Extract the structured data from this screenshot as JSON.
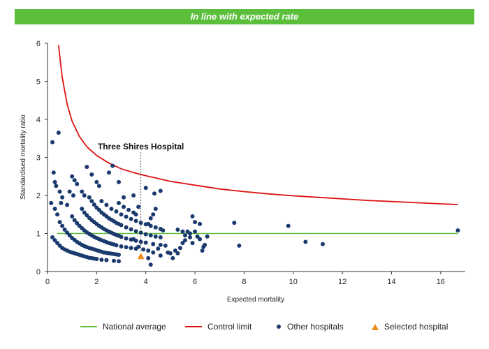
{
  "banner": {
    "text": "In line with expected rate"
  },
  "legend": {
    "national_average": "National average",
    "control_limit": "Control limit",
    "other_hospitals": "Other hospitals",
    "selected_hospital": "Selected hospital"
  },
  "colors": {
    "banner": "#5cbf3c",
    "national_average": "#5cbf3c",
    "control_limit": "#dd1111",
    "other_hospitals": "#1a3a6e",
    "selected_hospital": "#f08a1c"
  },
  "chart_data": {
    "type": "scatter",
    "xlabel": "Expected mortality",
    "ylabel": "Standardised mortality ratio",
    "xlim": [
      0,
      17
    ],
    "ylim": [
      0,
      6
    ],
    "xticks": [
      0,
      2,
      4,
      6,
      8,
      10,
      12,
      14,
      16
    ],
    "yticks": [
      0,
      1,
      2,
      3,
      4,
      5,
      6
    ],
    "grid": false,
    "legend_position": "bottom",
    "annotation": {
      "text": "Three Shires Hospital",
      "x": 3.8,
      "y": 0.4
    },
    "national_average": {
      "y": 1,
      "x_range": [
        0.4,
        16.7
      ]
    },
    "control_limit": {
      "x": [
        0.45,
        0.6,
        0.8,
        1.0,
        1.3,
        1.6,
        2.0,
        2.5,
        3.0,
        3.5,
        4.0,
        5.0,
        6.0,
        7.0,
        8.0,
        9.0,
        10.0,
        11.0,
        12.0,
        13.0,
        14.0,
        15.0,
        16.0,
        16.7
      ],
      "y": [
        5.95,
        5.1,
        4.4,
        3.95,
        3.55,
        3.28,
        3.05,
        2.85,
        2.7,
        2.6,
        2.52,
        2.37,
        2.27,
        2.17,
        2.1,
        2.04,
        1.99,
        1.95,
        1.91,
        1.87,
        1.84,
        1.81,
        1.78,
        1.76
      ]
    },
    "series": [
      {
        "name": "Other hospitals",
        "points": [
          [
            0.2,
            3.4
          ],
          [
            0.45,
            3.65
          ],
          [
            0.25,
            2.6
          ],
          [
            0.3,
            2.35
          ],
          [
            0.35,
            2.25
          ],
          [
            0.5,
            2.1
          ],
          [
            0.6,
            1.95
          ],
          [
            0.9,
            2.1
          ],
          [
            1.0,
            2.5
          ],
          [
            1.1,
            2.4
          ],
          [
            1.2,
            2.3
          ],
          [
            0.3,
            1.65
          ],
          [
            0.4,
            1.5
          ],
          [
            0.55,
            1.8
          ],
          [
            0.8,
            1.75
          ],
          [
            1.05,
            2.0
          ],
          [
            1.4,
            2.1
          ],
          [
            1.5,
            2.0
          ],
          [
            1.6,
            2.75
          ],
          [
            1.8,
            2.55
          ],
          [
            2.0,
            2.35
          ],
          [
            2.1,
            2.25
          ],
          [
            2.5,
            2.6
          ],
          [
            2.65,
            2.78
          ],
          [
            2.9,
            2.35
          ],
          [
            3.1,
            1.95
          ],
          [
            3.5,
            2.0
          ],
          [
            4.0,
            2.2
          ],
          [
            4.35,
            2.05
          ],
          [
            4.6,
            2.12
          ],
          [
            0.15,
            1.8
          ],
          [
            0.2,
            0.9
          ],
          [
            0.3,
            0.82
          ],
          [
            0.4,
            0.75
          ],
          [
            0.5,
            0.68
          ],
          [
            0.6,
            0.62
          ],
          [
            0.7,
            0.58
          ],
          [
            0.8,
            0.55
          ],
          [
            0.9,
            0.52
          ],
          [
            1.0,
            0.5
          ],
          [
            1.1,
            0.48
          ],
          [
            1.2,
            0.46
          ],
          [
            1.3,
            0.44
          ],
          [
            1.4,
            0.42
          ],
          [
            1.5,
            0.4
          ],
          [
            1.6,
            0.38
          ],
          [
            1.7,
            0.36
          ],
          [
            1.8,
            0.35
          ],
          [
            1.9,
            0.34
          ],
          [
            2.0,
            0.33
          ],
          [
            2.2,
            0.31
          ],
          [
            2.4,
            0.3
          ],
          [
            2.7,
            0.28
          ],
          [
            2.9,
            0.27
          ],
          [
            0.5,
            1.3
          ],
          [
            0.6,
            1.2
          ],
          [
            0.7,
            1.1
          ],
          [
            0.8,
            1.02
          ],
          [
            0.9,
            0.95
          ],
          [
            1.0,
            0.88
          ],
          [
            1.1,
            0.83
          ],
          [
            1.2,
            0.78
          ],
          [
            1.3,
            0.74
          ],
          [
            1.4,
            0.7
          ],
          [
            1.5,
            0.67
          ],
          [
            1.6,
            0.64
          ],
          [
            1.7,
            0.62
          ],
          [
            1.8,
            0.6
          ],
          [
            1.9,
            0.58
          ],
          [
            2.0,
            0.56
          ],
          [
            2.1,
            0.54
          ],
          [
            2.2,
            0.52
          ],
          [
            2.3,
            0.5
          ],
          [
            2.4,
            0.49
          ],
          [
            2.5,
            0.48
          ],
          [
            2.6,
            0.47
          ],
          [
            2.7,
            0.46
          ],
          [
            2.8,
            0.45
          ],
          [
            2.9,
            0.44
          ],
          [
            1.0,
            1.45
          ],
          [
            1.1,
            1.35
          ],
          [
            1.2,
            1.27
          ],
          [
            1.3,
            1.2
          ],
          [
            1.4,
            1.14
          ],
          [
            1.5,
            1.08
          ],
          [
            1.6,
            1.03
          ],
          [
            1.7,
            0.99
          ],
          [
            1.8,
            0.95
          ],
          [
            1.9,
            0.91
          ],
          [
            2.0,
            0.88
          ],
          [
            2.1,
            0.85
          ],
          [
            2.2,
            0.82
          ],
          [
            2.3,
            0.8
          ],
          [
            2.4,
            0.77
          ],
          [
            2.5,
            0.75
          ],
          [
            2.6,
            0.73
          ],
          [
            2.7,
            0.71
          ],
          [
            2.8,
            0.69
          ],
          [
            3.0,
            0.66
          ],
          [
            3.2,
            0.64
          ],
          [
            3.4,
            0.62
          ],
          [
            3.6,
            0.6
          ],
          [
            1.4,
            1.65
          ],
          [
            1.5,
            1.55
          ],
          [
            1.6,
            1.48
          ],
          [
            1.7,
            1.41
          ],
          [
            1.8,
            1.35
          ],
          [
            1.9,
            1.3
          ],
          [
            2.0,
            1.25
          ],
          [
            2.1,
            1.2
          ],
          [
            2.2,
            1.16
          ],
          [
            2.3,
            1.12
          ],
          [
            2.4,
            1.08
          ],
          [
            2.5,
            1.05
          ],
          [
            2.6,
            1.02
          ],
          [
            2.7,
            0.99
          ],
          [
            2.8,
            0.96
          ],
          [
            2.9,
            0.94
          ],
          [
            3.0,
            0.91
          ],
          [
            3.2,
            0.87
          ],
          [
            3.4,
            0.84
          ],
          [
            3.6,
            0.81
          ],
          [
            3.8,
            0.78
          ],
          [
            4.0,
            0.76
          ],
          [
            4.3,
            0.72
          ],
          [
            4.6,
            0.7
          ],
          [
            1.7,
            1.95
          ],
          [
            1.8,
            1.85
          ],
          [
            1.9,
            1.76
          ],
          [
            2.0,
            1.68
          ],
          [
            2.1,
            1.62
          ],
          [
            2.2,
            1.55
          ],
          [
            2.3,
            1.5
          ],
          [
            2.4,
            1.45
          ],
          [
            2.5,
            1.4
          ],
          [
            2.6,
            1.36
          ],
          [
            2.7,
            1.32
          ],
          [
            2.8,
            1.28
          ],
          [
            2.9,
            1.25
          ],
          [
            3.0,
            1.22
          ],
          [
            3.2,
            1.16
          ],
          [
            3.4,
            1.11
          ],
          [
            3.6,
            1.06
          ],
          [
            3.8,
            1.02
          ],
          [
            4.0,
            0.98
          ],
          [
            4.2,
            0.95
          ],
          [
            4.4,
            0.92
          ],
          [
            4.6,
            0.9
          ],
          [
            2.2,
            1.85
          ],
          [
            2.4,
            1.75
          ],
          [
            2.6,
            1.65
          ],
          [
            2.8,
            1.58
          ],
          [
            3.0,
            1.5
          ],
          [
            3.2,
            1.44
          ],
          [
            3.4,
            1.38
          ],
          [
            3.6,
            1.33
          ],
          [
            3.8,
            1.28
          ],
          [
            4.0,
            1.24
          ],
          [
            4.2,
            1.2
          ],
          [
            4.4,
            1.16
          ],
          [
            4.6,
            1.12
          ],
          [
            2.9,
            1.8
          ],
          [
            3.1,
            1.7
          ],
          [
            3.3,
            1.62
          ],
          [
            3.5,
            1.55
          ],
          [
            3.7,
            1.7
          ],
          [
            3.6,
            1.5
          ],
          [
            4.1,
            1.25
          ],
          [
            4.3,
            1.5
          ],
          [
            4.4,
            1.65
          ],
          [
            4.2,
            1.4
          ],
          [
            4.7,
            1.08
          ],
          [
            3.5,
            0.85
          ],
          [
            3.7,
            0.65
          ],
          [
            3.9,
            0.58
          ],
          [
            4.1,
            0.55
          ],
          [
            4.3,
            0.5
          ],
          [
            4.5,
            0.6
          ],
          [
            4.1,
            0.35
          ],
          [
            4.2,
            0.18
          ],
          [
            4.6,
            0.42
          ],
          [
            4.8,
            0.68
          ],
          [
            4.9,
            0.5
          ],
          [
            5.0,
            0.48
          ],
          [
            5.1,
            0.35
          ],
          [
            5.2,
            0.55
          ],
          [
            5.3,
            0.48
          ],
          [
            5.4,
            0.62
          ],
          [
            5.5,
            0.75
          ],
          [
            5.6,
            0.95
          ],
          [
            5.7,
            1.05
          ],
          [
            5.8,
            0.9
          ],
          [
            5.9,
            0.75
          ],
          [
            6.0,
            1.05
          ],
          [
            6.1,
            0.92
          ],
          [
            6.2,
            0.85
          ],
          [
            6.3,
            0.55
          ],
          [
            6.35,
            0.65
          ],
          [
            6.4,
            0.7
          ],
          [
            6.5,
            0.92
          ],
          [
            5.3,
            1.1
          ],
          [
            5.5,
            1.05
          ],
          [
            5.9,
            1.45
          ],
          [
            6.0,
            1.3
          ],
          [
            6.2,
            1.25
          ],
          [
            5.6,
            0.82
          ],
          [
            5.8,
            1.0
          ],
          [
            7.6,
            1.28
          ],
          [
            7.8,
            0.68
          ],
          [
            9.8,
            1.2
          ],
          [
            10.5,
            0.78
          ],
          [
            11.2,
            0.72
          ],
          [
            16.7,
            1.08
          ]
        ]
      },
      {
        "name": "Selected hospital",
        "points": [
          [
            3.8,
            0.4
          ]
        ]
      }
    ]
  }
}
